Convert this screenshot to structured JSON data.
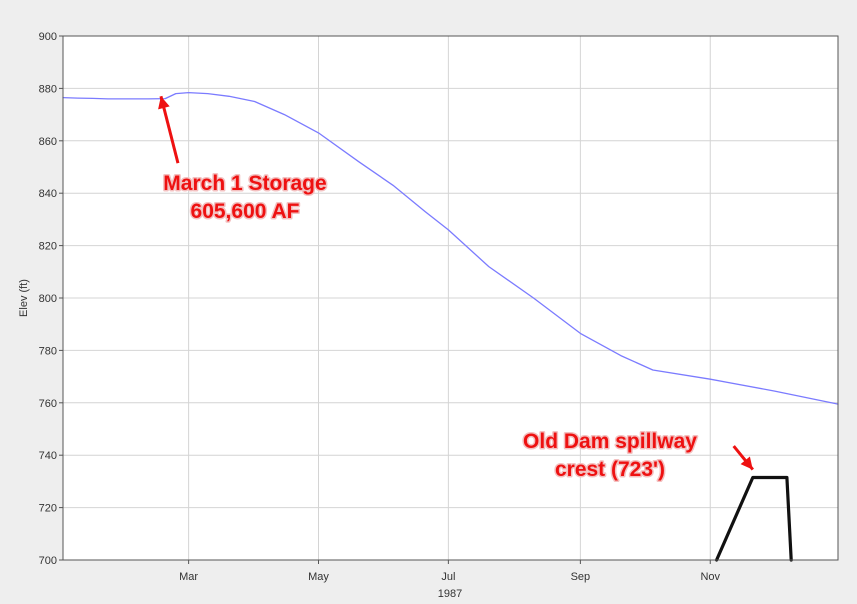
{
  "chart_data": {
    "type": "line",
    "title": "",
    "xlabel": "1987",
    "ylabel": "Elev (ft)",
    "ylim": [
      700,
      900
    ],
    "xlim": [
      "1987-01-01",
      "1987-12-31"
    ],
    "grid": true,
    "x_ticks": [
      {
        "date": "1987-03-01",
        "label": "Mar"
      },
      {
        "date": "1987-05-01",
        "label": "May"
      },
      {
        "date": "1987-07-01",
        "label": "Jul"
      },
      {
        "date": "1987-09-01",
        "label": "Sep"
      },
      {
        "date": "1987-11-01",
        "label": "Nov"
      }
    ],
    "y_ticks": [
      700,
      720,
      740,
      760,
      780,
      800,
      820,
      840,
      860,
      880,
      900
    ],
    "series": [
      {
        "color": "#7b7bff",
        "points": [
          [
            "1987-01-01",
            876.5
          ],
          [
            "1987-01-08",
            876.3
          ],
          [
            "1987-01-15",
            876.2
          ],
          [
            "1987-01-22",
            876.0
          ],
          [
            "1987-02-01",
            876.0
          ],
          [
            "1987-02-10",
            876.0
          ],
          [
            "1987-02-18",
            876.1
          ],
          [
            "1987-02-23",
            878.0
          ],
          [
            "1987-03-01",
            878.4
          ],
          [
            "1987-03-10",
            878.0
          ],
          [
            "1987-03-20",
            877.0
          ],
          [
            "1987-04-01",
            875.0
          ],
          [
            "1987-04-15",
            870.0
          ],
          [
            "1987-05-01",
            863.0
          ],
          [
            "1987-05-20",
            852.0
          ],
          [
            "1987-06-05",
            843.0
          ],
          [
            "1987-06-20",
            833.0
          ],
          [
            "1987-07-01",
            826.0
          ],
          [
            "1987-07-20",
            812.0
          ],
          [
            "1987-08-10",
            800.0
          ],
          [
            "1987-09-01",
            786.5
          ],
          [
            "1987-09-20",
            778.0
          ],
          [
            "1987-10-05",
            772.5
          ],
          [
            "1987-11-01",
            769.0
          ],
          [
            "1987-12-01",
            764.5
          ],
          [
            "1987-12-31",
            759.5
          ]
        ]
      },
      {
        "color": "#111111",
        "points": [
          [
            "1987-11-04",
            700.0
          ],
          [
            "1987-11-21",
            731.5
          ],
          [
            "1987-12-07",
            731.5
          ],
          [
            "1987-12-09",
            700.0
          ]
        ]
      }
    ],
    "annotations": [
      {
        "lines": [
          "March 1 Storage",
          "605,600 AF"
        ],
        "color": "#ee1111",
        "arrow_from": [
          "1987-02-24",
          851.5
        ],
        "arrow_to": [
          "1987-02-16",
          877.0
        ]
      },
      {
        "lines": [
          "Old Dam spillway",
          "crest (723')"
        ],
        "color": "#ee1111",
        "arrow_from": [
          "1987-11-12",
          743.5
        ],
        "arrow_to": [
          "1987-11-21",
          734.5
        ]
      }
    ]
  }
}
